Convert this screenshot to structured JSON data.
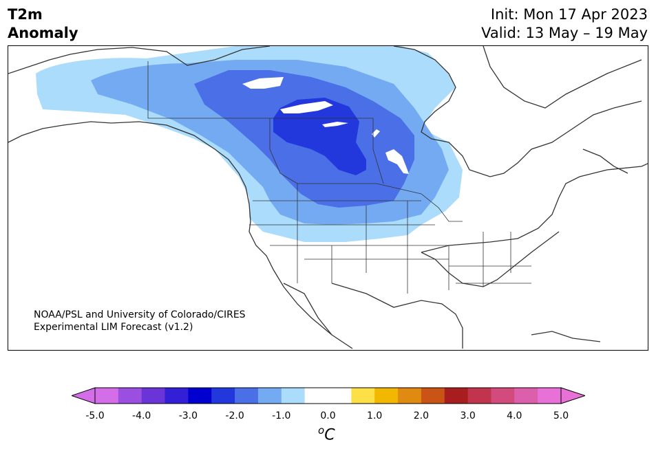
{
  "title": {
    "line1": "T2m",
    "line2": "Anomaly"
  },
  "dates": {
    "init": "Init: Mon 17 Apr 2023",
    "valid": "Valid: 13 May – 19 May"
  },
  "credit": {
    "line1": "NOAA/PSL and University of Colorado/CIRES",
    "line2": "Experimental LIM Forecast (v1.2)"
  },
  "colorbar": {
    "units_base": "o",
    "units_letter": "C",
    "tick_labels": [
      "-5.0",
      "-4.0",
      "-3.0",
      "-2.0",
      "-1.0",
      "0.0",
      "1.0",
      "2.0",
      "3.0",
      "4.0",
      "5.0"
    ],
    "colors": [
      "#d36ee8",
      "#9a4fe0",
      "#6a34d8",
      "#3320d6",
      "#0000cf",
      "#2338dc",
      "#4a6fe6",
      "#74aaf2",
      "#abdcfc",
      "#ffffff",
      "#ffffff",
      "#fde047",
      "#f2b700",
      "#e08a12",
      "#c95416",
      "#a81e1e",
      "#c0344e",
      "#d24b7c",
      "#dc5fac",
      "#e871d8"
    ],
    "under_color": "#d36ee8",
    "over_color": "#e871d8"
  },
  "map_data": {
    "region": "North America",
    "anomaly_regions": [
      {
        "level": "-0.5 to -1.0",
        "color": "#abdcfc"
      },
      {
        "level": "-1.0 to -1.5",
        "color": "#74aaf2"
      },
      {
        "level": "-1.5 to -2.0",
        "color": "#4a6fe6"
      },
      {
        "level": "-2.0 to -2.5",
        "color": "#2338dc"
      }
    ]
  }
}
